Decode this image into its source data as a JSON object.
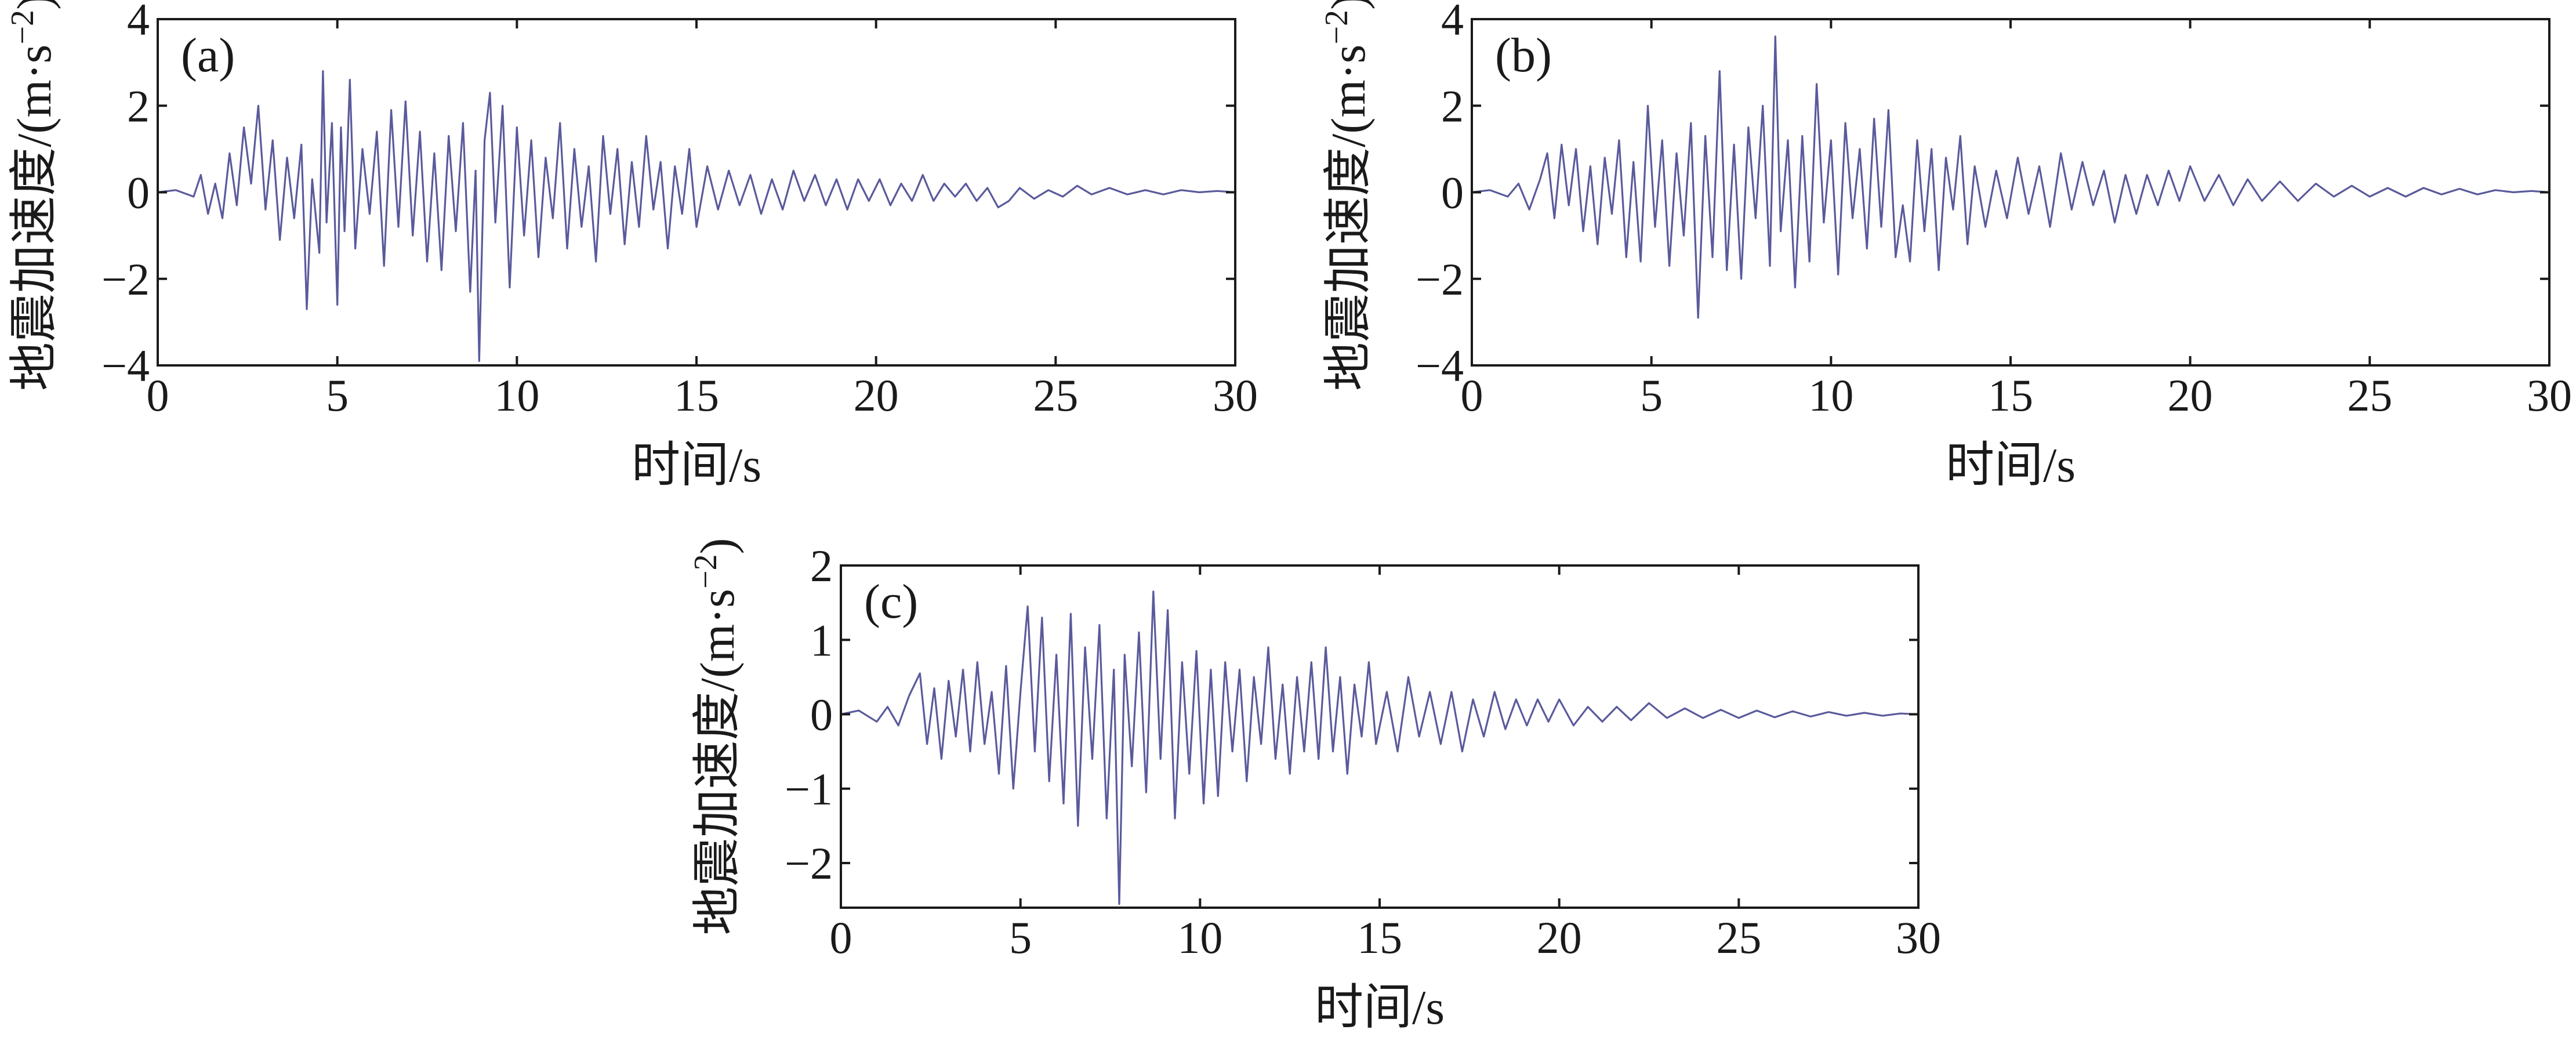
{
  "chart_data": [
    {
      "type": "line",
      "panel_label": "(a)",
      "xlabel": "时间/s",
      "ylabel_main": "地震加速度/(m·s",
      "ylabel_sup": "−2",
      "ylabel_close": ")",
      "xlim": [
        0,
        30
      ],
      "ylim": [
        -4,
        4
      ],
      "xticks": [
        0,
        5,
        10,
        15,
        20,
        25,
        30
      ],
      "xtick_labels": [
        "0",
        "5",
        "10",
        "15",
        "20",
        "25",
        "30"
      ],
      "yticks": [
        -4,
        -2,
        0,
        2,
        4
      ],
      "ytick_labels": [
        "−4",
        "−2",
        "0",
        "2",
        "4"
      ],
      "color": "#5a5a9c",
      "series": [
        {
          "name": "acceleration",
          "x": [
            0.0,
            0.5,
            1.0,
            1.2,
            1.4,
            1.6,
            1.8,
            2.0,
            2.2,
            2.4,
            2.6,
            2.8,
            3.0,
            3.2,
            3.4,
            3.6,
            3.8,
            4.0,
            4.15,
            4.3,
            4.5,
            4.6,
            4.7,
            4.85,
            5.0,
            5.1,
            5.2,
            5.35,
            5.5,
            5.7,
            5.9,
            6.1,
            6.3,
            6.5,
            6.7,
            6.9,
            7.1,
            7.3,
            7.5,
            7.7,
            7.9,
            8.1,
            8.3,
            8.5,
            8.7,
            8.85,
            8.95,
            9.1,
            9.25,
            9.4,
            9.6,
            9.8,
            10.0,
            10.2,
            10.4,
            10.6,
            10.8,
            11.0,
            11.2,
            11.4,
            11.6,
            11.8,
            12.0,
            12.2,
            12.4,
            12.6,
            12.8,
            13.0,
            13.2,
            13.4,
            13.6,
            13.8,
            14.0,
            14.2,
            14.4,
            14.6,
            14.8,
            15.0,
            15.3,
            15.6,
            15.9,
            16.2,
            16.5,
            16.8,
            17.1,
            17.4,
            17.7,
            18.0,
            18.3,
            18.6,
            18.9,
            19.2,
            19.5,
            19.8,
            20.1,
            20.4,
            20.7,
            21.0,
            21.3,
            21.6,
            21.9,
            22.2,
            22.5,
            22.8,
            23.1,
            23.4,
            23.7,
            24.0,
            24.4,
            24.8,
            25.2,
            25.6,
            26.0,
            26.5,
            27.0,
            27.5,
            28.0,
            28.5,
            29.0,
            29.5,
            30.0
          ],
          "y": [
            0.0,
            0.05,
            -0.1,
            0.4,
            -0.5,
            0.2,
            -0.6,
            0.9,
            -0.3,
            1.5,
            0.2,
            2.0,
            -0.4,
            1.2,
            -1.1,
            0.8,
            -0.6,
            1.1,
            -2.7,
            0.3,
            -1.4,
            2.8,
            -0.7,
            1.6,
            -2.6,
            1.5,
            -0.9,
            2.6,
            -1.3,
            1.0,
            -0.5,
            1.4,
            -1.7,
            1.9,
            -0.8,
            2.1,
            -1.0,
            1.4,
            -1.6,
            0.9,
            -1.8,
            1.3,
            -0.9,
            1.6,
            -2.3,
            0.5,
            -3.9,
            1.2,
            2.3,
            -0.7,
            2.0,
            -2.2,
            1.5,
            -1.0,
            1.2,
            -1.5,
            0.8,
            -0.6,
            1.6,
            -1.3,
            1.0,
            -0.8,
            0.6,
            -1.6,
            1.3,
            -0.5,
            1.0,
            -1.2,
            0.7,
            -0.8,
            1.3,
            -0.4,
            0.7,
            -1.3,
            0.6,
            -0.5,
            1.0,
            -0.8,
            0.6,
            -0.4,
            0.5,
            -0.3,
            0.4,
            -0.5,
            0.3,
            -0.4,
            0.5,
            -0.2,
            0.4,
            -0.3,
            0.3,
            -0.4,
            0.3,
            -0.2,
            0.3,
            -0.3,
            0.2,
            -0.2,
            0.4,
            -0.2,
            0.2,
            -0.1,
            0.2,
            -0.2,
            0.1,
            -0.35,
            -0.2,
            0.1,
            -0.15,
            0.05,
            -0.1,
            0.15,
            -0.05,
            0.1,
            -0.05,
            0.05,
            -0.05,
            0.05,
            0.0,
            0.03,
            0.0
          ]
        }
      ]
    },
    {
      "type": "line",
      "panel_label": "(b)",
      "xlabel": "时间/s",
      "ylabel_main": "地震加速度/(m·s",
      "ylabel_sup": "−2",
      "ylabel_close": ")",
      "xlim": [
        0,
        30
      ],
      "ylim": [
        -4,
        4
      ],
      "xticks": [
        0,
        5,
        10,
        15,
        20,
        25,
        30
      ],
      "xtick_labels": [
        "0",
        "5",
        "10",
        "15",
        "20",
        "25",
        "30"
      ],
      "yticks": [
        -4,
        -2,
        0,
        2,
        4
      ],
      "ytick_labels": [
        "−4",
        "−2",
        "0",
        "2",
        "4"
      ],
      "color": "#5a5a9c",
      "series": [
        {
          "name": "acceleration",
          "x": [
            0.0,
            0.5,
            1.0,
            1.3,
            1.6,
            1.9,
            2.1,
            2.3,
            2.5,
            2.7,
            2.9,
            3.1,
            3.3,
            3.5,
            3.7,
            3.9,
            4.1,
            4.3,
            4.5,
            4.7,
            4.9,
            5.1,
            5.3,
            5.5,
            5.7,
            5.9,
            6.1,
            6.3,
            6.5,
            6.7,
            6.9,
            7.1,
            7.3,
            7.5,
            7.7,
            7.9,
            8.1,
            8.3,
            8.45,
            8.6,
            8.8,
            9.0,
            9.2,
            9.4,
            9.6,
            9.8,
            10.0,
            10.2,
            10.4,
            10.6,
            10.8,
            11.0,
            11.2,
            11.4,
            11.6,
            11.8,
            12.0,
            12.2,
            12.4,
            12.6,
            12.8,
            13.0,
            13.2,
            13.4,
            13.6,
            13.8,
            14.0,
            14.3,
            14.6,
            14.9,
            15.2,
            15.5,
            15.8,
            16.1,
            16.4,
            16.7,
            17.0,
            17.3,
            17.6,
            17.9,
            18.2,
            18.5,
            18.8,
            19.1,
            19.4,
            19.7,
            20.0,
            20.4,
            20.8,
            21.2,
            21.6,
            22.0,
            22.5,
            23.0,
            23.5,
            24.0,
            24.5,
            25.0,
            25.5,
            26.0,
            26.5,
            27.0,
            27.5,
            28.0,
            28.5,
            29.0,
            29.5,
            30.0
          ],
          "y": [
            0.0,
            0.05,
            -0.1,
            0.2,
            -0.4,
            0.3,
            0.9,
            -0.6,
            1.1,
            -0.3,
            1.0,
            -0.9,
            0.6,
            -1.2,
            0.8,
            -0.5,
            1.2,
            -1.5,
            0.7,
            -1.6,
            2.0,
            -0.8,
            1.2,
            -1.7,
            0.9,
            -1.0,
            1.6,
            -2.9,
            1.3,
            -1.5,
            2.8,
            -1.8,
            1.1,
            -2.0,
            1.5,
            -0.6,
            2.0,
            -1.7,
            3.6,
            -0.9,
            1.2,
            -2.2,
            1.3,
            -1.6,
            2.5,
            -0.7,
            1.2,
            -1.9,
            1.6,
            -0.6,
            1.0,
            -1.3,
            1.7,
            -0.8,
            1.9,
            -1.5,
            -0.3,
            -1.6,
            1.2,
            -0.9,
            1.0,
            -1.8,
            0.8,
            -0.4,
            1.3,
            -1.2,
            0.6,
            -0.8,
            0.5,
            -0.6,
            0.8,
            -0.5,
            0.6,
            -0.8,
            0.9,
            -0.4,
            0.7,
            -0.3,
            0.5,
            -0.7,
            0.4,
            -0.5,
            0.4,
            -0.3,
            0.5,
            -0.2,
            0.6,
            -0.2,
            0.4,
            -0.3,
            0.3,
            -0.2,
            0.25,
            -0.2,
            0.2,
            -0.1,
            0.15,
            -0.1,
            0.1,
            -0.1,
            0.1,
            -0.05,
            0.08,
            -0.05,
            0.05,
            0.0,
            0.03,
            0.0
          ]
        }
      ]
    },
    {
      "type": "line",
      "panel_label": "(c)",
      "xlabel": "时间/s",
      "ylabel_main": "地震加速度/(m·s",
      "ylabel_sup": "−2",
      "ylabel_close": ")",
      "xlim": [
        0,
        30
      ],
      "ylim": [
        -2.6,
        2
      ],
      "xticks": [
        0,
        5,
        10,
        15,
        20,
        25,
        30
      ],
      "xtick_labels": [
        "0",
        "5",
        "10",
        "15",
        "20",
        "25",
        "30"
      ],
      "yticks": [
        -2,
        -1,
        0,
        1,
        2
      ],
      "ytick_labels": [
        "−2",
        "−1",
        "0",
        "1",
        "2"
      ],
      "color": "#5a5a9c",
      "series": [
        {
          "name": "acceleration",
          "x": [
            0.0,
            0.5,
            1.0,
            1.3,
            1.6,
            1.9,
            2.2,
            2.4,
            2.6,
            2.8,
            3.0,
            3.2,
            3.4,
            3.6,
            3.8,
            4.0,
            4.2,
            4.4,
            4.6,
            4.8,
            5.0,
            5.2,
            5.4,
            5.6,
            5.8,
            6.0,
            6.2,
            6.4,
            6.6,
            6.8,
            7.0,
            7.2,
            7.4,
            7.6,
            7.75,
            7.9,
            8.1,
            8.3,
            8.5,
            8.7,
            8.9,
            9.1,
            9.3,
            9.5,
            9.7,
            9.9,
            10.1,
            10.3,
            10.5,
            10.7,
            10.9,
            11.1,
            11.3,
            11.5,
            11.7,
            11.9,
            12.1,
            12.3,
            12.5,
            12.7,
            12.9,
            13.1,
            13.3,
            13.5,
            13.7,
            13.9,
            14.1,
            14.3,
            14.5,
            14.7,
            14.9,
            15.2,
            15.5,
            15.8,
            16.1,
            16.4,
            16.7,
            17.0,
            17.3,
            17.6,
            17.9,
            18.2,
            18.5,
            18.8,
            19.1,
            19.4,
            19.7,
            20.0,
            20.4,
            20.8,
            21.2,
            21.6,
            22.0,
            22.5,
            23.0,
            23.5,
            24.0,
            24.5,
            25.0,
            25.5,
            26.0,
            26.5,
            27.0,
            27.5,
            28.0,
            28.5,
            29.0,
            29.5,
            30.0
          ],
          "y": [
            0.0,
            0.05,
            -0.1,
            0.1,
            -0.15,
            0.25,
            0.55,
            -0.4,
            0.35,
            -0.6,
            0.45,
            -0.3,
            0.6,
            -0.5,
            0.7,
            -0.4,
            0.3,
            -0.8,
            0.65,
            -1.0,
            0.3,
            1.45,
            -0.5,
            1.3,
            -0.9,
            0.8,
            -1.2,
            1.35,
            -1.5,
            0.9,
            -0.6,
            1.2,
            -1.4,
            0.6,
            -2.55,
            0.8,
            -0.7,
            1.1,
            -1.05,
            1.65,
            -0.6,
            1.4,
            -1.4,
            0.7,
            -0.8,
            0.85,
            -1.2,
            0.6,
            -1.1,
            0.7,
            -0.5,
            0.6,
            -0.9,
            0.5,
            -0.4,
            0.9,
            -0.6,
            0.4,
            -0.8,
            0.5,
            -0.5,
            0.7,
            -0.6,
            0.9,
            -0.5,
            0.5,
            -0.8,
            0.4,
            -0.3,
            0.7,
            -0.4,
            0.3,
            -0.5,
            0.5,
            -0.3,
            0.3,
            -0.4,
            0.3,
            -0.5,
            0.2,
            -0.3,
            0.3,
            -0.2,
            0.2,
            -0.15,
            0.2,
            -0.1,
            0.2,
            -0.15,
            0.1,
            -0.1,
            0.1,
            -0.08,
            0.15,
            -0.05,
            0.08,
            -0.05,
            0.06,
            -0.05,
            0.05,
            -0.04,
            0.04,
            -0.03,
            0.03,
            -0.02,
            0.02,
            -0.02,
            0.01,
            0.0
          ]
        }
      ]
    }
  ]
}
